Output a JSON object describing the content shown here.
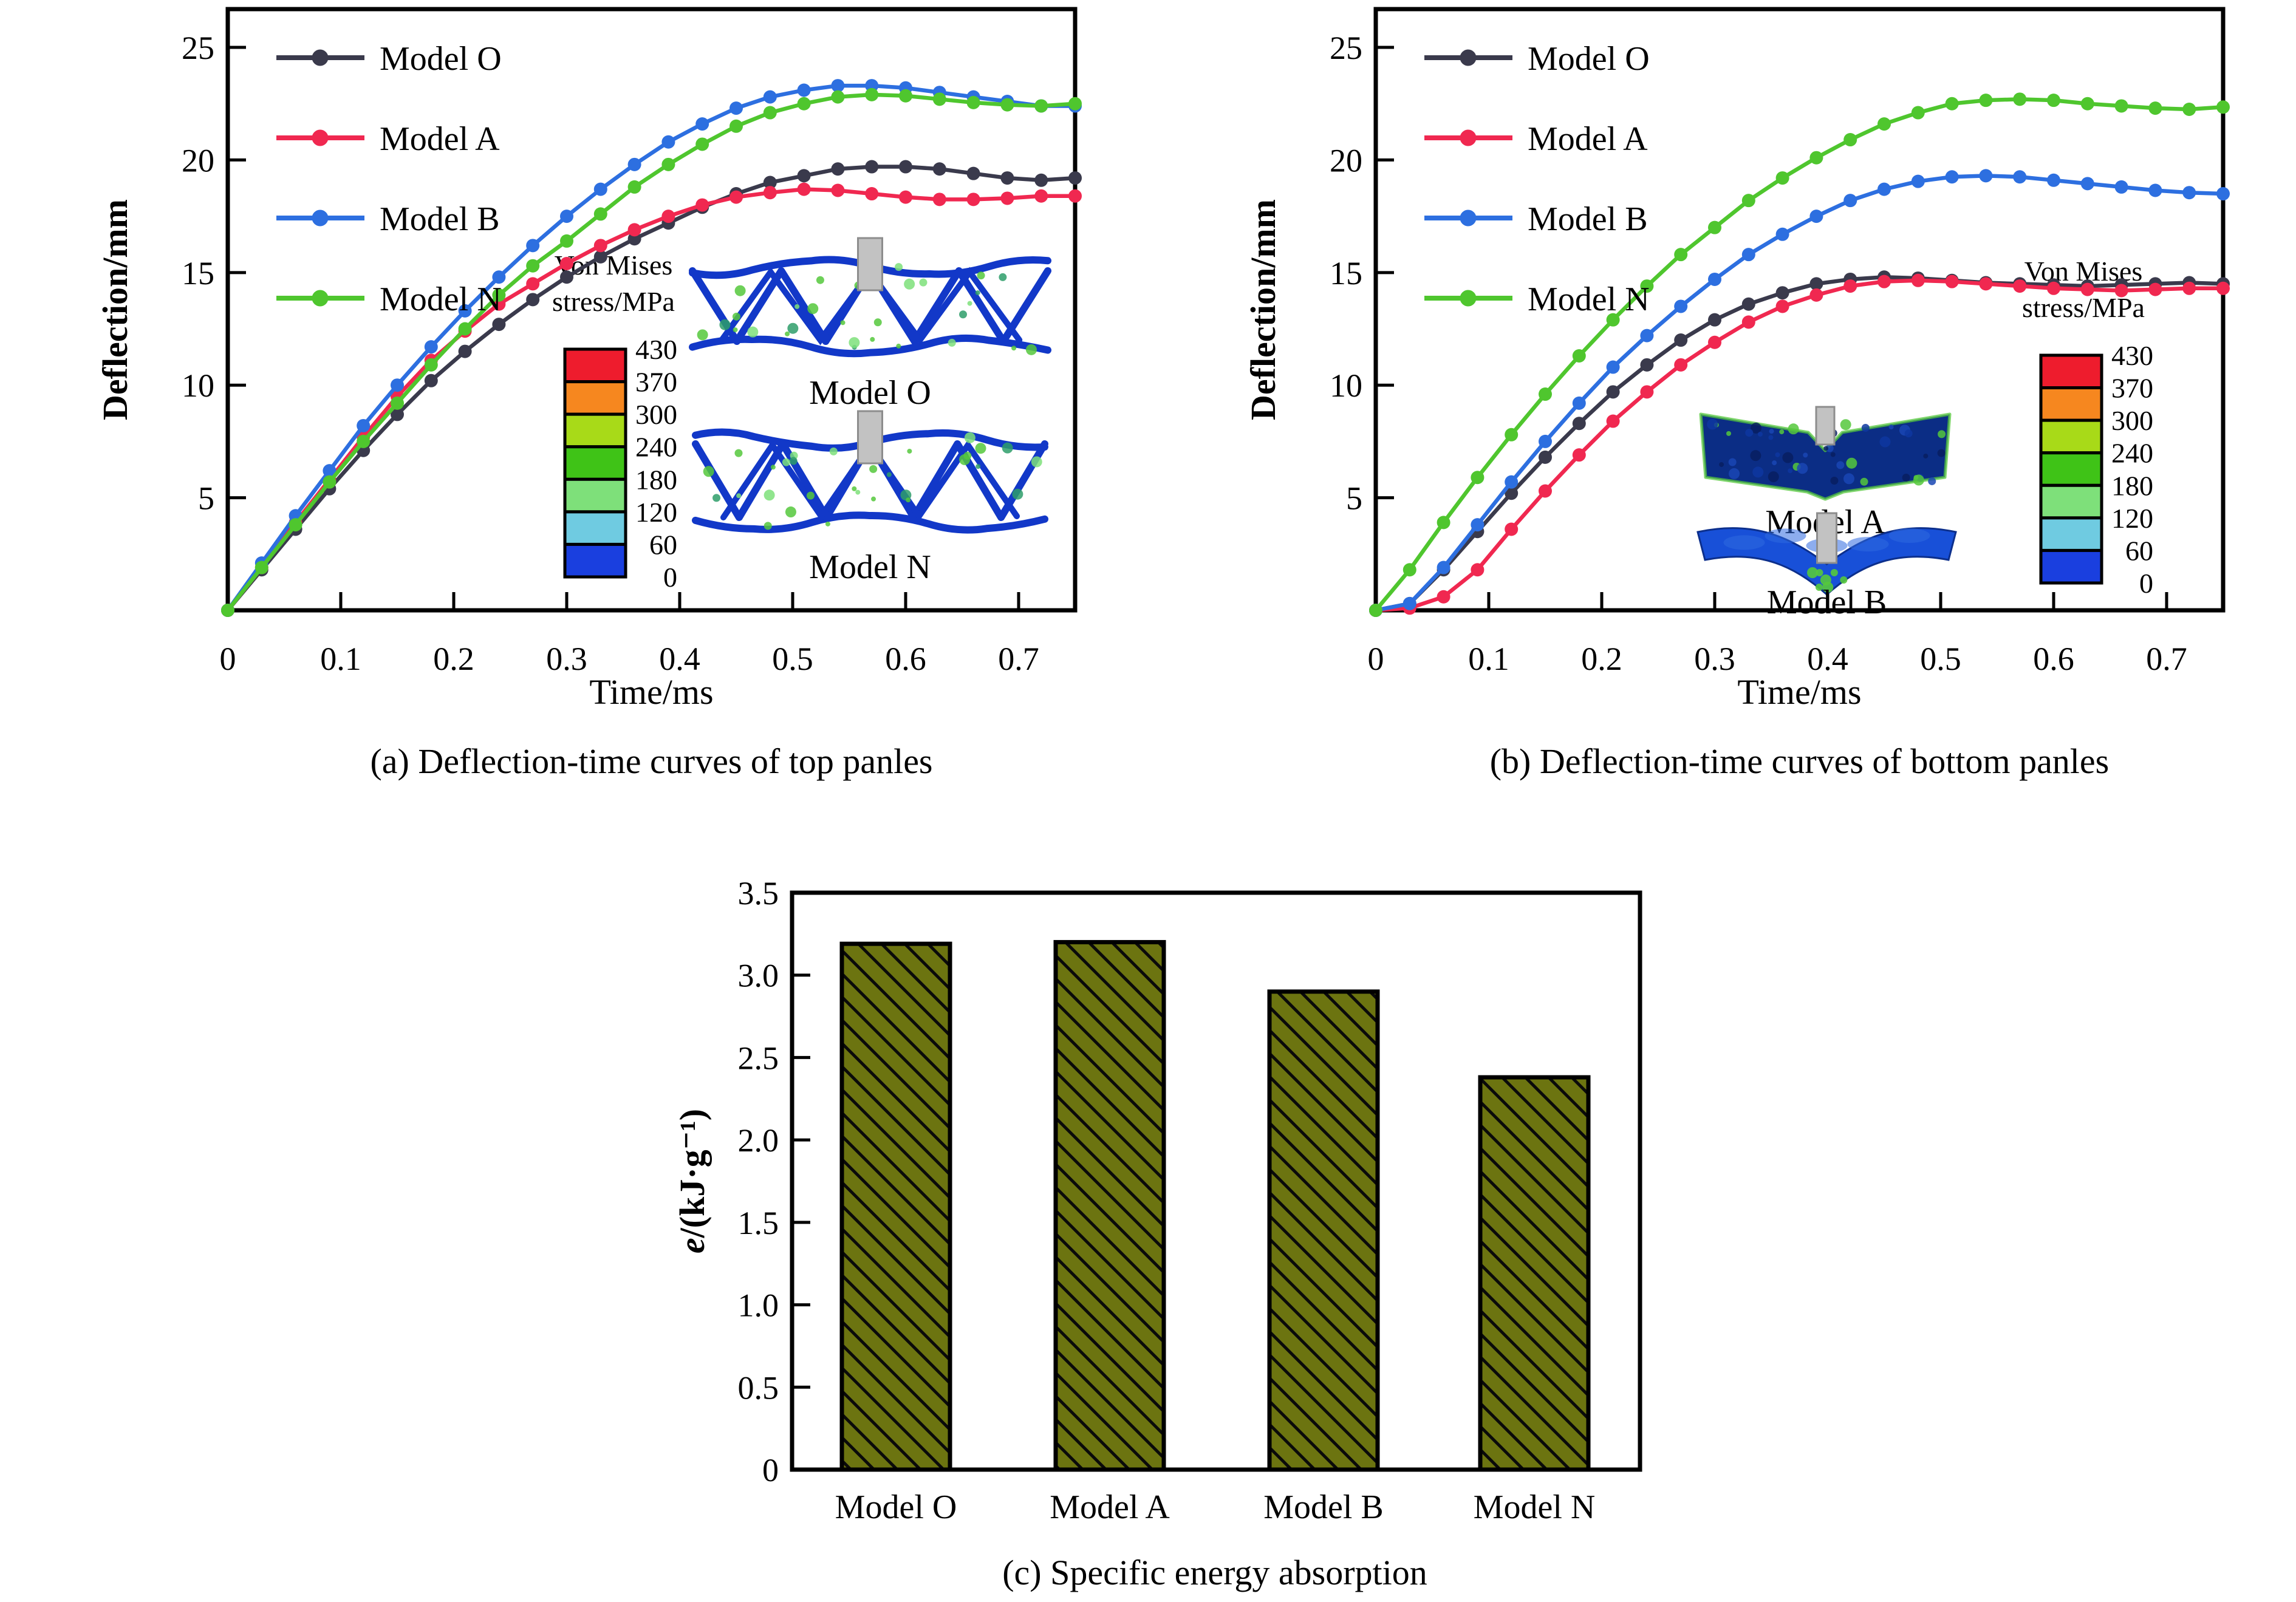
{
  "figure": {
    "background": "#ffffff"
  },
  "colorbar": {
    "title_lines": [
      "Von Mises",
      "stress/MPa"
    ],
    "tick_labels": [
      "430",
      "370",
      "300",
      "240",
      "180",
      "120",
      "60",
      "0"
    ],
    "segment_colors": [
      "#ee1c2d",
      "#f6871f",
      "#a8da18",
      "#3fc317",
      "#7ee07a",
      "#6fcbe1",
      "#1a3fdf"
    ]
  },
  "indenter_color": "#c2c2c2",
  "chart_data": [
    {
      "type": "line",
      "panel": "a",
      "caption": "(a) Deflection-time curves of top panles",
      "xlabel": "Time/ms",
      "ylabel": "Deflection/mm",
      "xlim": [
        0,
        0.75
      ],
      "ylim": [
        0,
        26.7
      ],
      "xticks": [
        0,
        0.1,
        0.2,
        0.3,
        0.4,
        0.5,
        0.6,
        0.7
      ],
      "yticks": [
        5,
        10,
        15,
        20,
        25
      ],
      "grid": false,
      "legend_position": "top-left",
      "x": [
        0,
        0.03,
        0.06,
        0.09,
        0.12,
        0.15,
        0.18,
        0.21,
        0.24,
        0.27,
        0.3,
        0.33,
        0.36,
        0.39,
        0.42,
        0.45,
        0.48,
        0.51,
        0.54,
        0.57,
        0.6,
        0.63,
        0.66,
        0.69,
        0.72,
        0.75
      ],
      "series": [
        {
          "name": "Model O",
          "color": "#3a3a4c",
          "values": [
            0,
            1.8,
            3.6,
            5.4,
            7.1,
            8.7,
            10.2,
            11.5,
            12.7,
            13.8,
            14.8,
            15.7,
            16.5,
            17.2,
            17.9,
            18.5,
            19.0,
            19.3,
            19.6,
            19.7,
            19.7,
            19.6,
            19.4,
            19.2,
            19.1,
            19.2
          ]
        },
        {
          "name": "Model A",
          "color": "#f02850",
          "values": [
            0,
            1.9,
            3.9,
            5.8,
            7.7,
            9.5,
            11.1,
            12.4,
            13.6,
            14.5,
            15.4,
            16.2,
            16.9,
            17.5,
            18.0,
            18.35,
            18.55,
            18.7,
            18.65,
            18.5,
            18.35,
            18.25,
            18.25,
            18.3,
            18.4,
            18.4
          ]
        },
        {
          "name": "Model B",
          "color": "#2d6fe0",
          "values": [
            0,
            2.1,
            4.2,
            6.2,
            8.2,
            10.0,
            11.7,
            13.3,
            14.8,
            16.2,
            17.5,
            18.7,
            19.8,
            20.8,
            21.6,
            22.3,
            22.8,
            23.1,
            23.3,
            23.3,
            23.2,
            23.0,
            22.8,
            22.6,
            22.4,
            22.4
          ]
        },
        {
          "name": "Model N",
          "color": "#4fc62e",
          "values": [
            0,
            1.9,
            3.8,
            5.7,
            7.5,
            9.2,
            10.9,
            12.5,
            14.0,
            15.3,
            16.4,
            17.6,
            18.8,
            19.8,
            20.7,
            21.5,
            22.1,
            22.5,
            22.8,
            22.9,
            22.85,
            22.7,
            22.55,
            22.45,
            22.4,
            22.5
          ]
        }
      ],
      "insets": [
        {
          "label": "Model O",
          "kind": "truss",
          "phase": 1
        },
        {
          "label": "Model N",
          "kind": "truss",
          "phase": 4
        }
      ]
    },
    {
      "type": "line",
      "panel": "b",
      "caption": "(b) Deflection-time curves of bottom panles",
      "xlabel": "Time/ms",
      "ylabel": "Deflection/mm",
      "xlim": [
        0,
        0.75
      ],
      "ylim": [
        0,
        26.7
      ],
      "xticks": [
        0,
        0.1,
        0.2,
        0.3,
        0.4,
        0.5,
        0.6,
        0.7
      ],
      "yticks": [
        5,
        10,
        15,
        20,
        25
      ],
      "grid": false,
      "legend_position": "top-left",
      "x": [
        0,
        0.03,
        0.06,
        0.09,
        0.12,
        0.15,
        0.18,
        0.21,
        0.24,
        0.27,
        0.3,
        0.33,
        0.36,
        0.39,
        0.42,
        0.45,
        0.48,
        0.51,
        0.54,
        0.57,
        0.6,
        0.63,
        0.66,
        0.69,
        0.72,
        0.75
      ],
      "series": [
        {
          "name": "Model O",
          "color": "#3a3a4c",
          "values": [
            0,
            0.3,
            1.8,
            3.5,
            5.2,
            6.8,
            8.3,
            9.7,
            10.9,
            12.0,
            12.9,
            13.6,
            14.1,
            14.5,
            14.7,
            14.8,
            14.75,
            14.65,
            14.55,
            14.5,
            14.45,
            14.4,
            14.45,
            14.5,
            14.55,
            14.5
          ]
        },
        {
          "name": "Model A",
          "color": "#f02850",
          "values": [
            0,
            0.1,
            0.6,
            1.8,
            3.6,
            5.3,
            6.9,
            8.4,
            9.7,
            10.9,
            11.9,
            12.8,
            13.5,
            14.0,
            14.4,
            14.6,
            14.65,
            14.6,
            14.5,
            14.4,
            14.3,
            14.25,
            14.2,
            14.25,
            14.3,
            14.3
          ]
        },
        {
          "name": "Model B",
          "color": "#2d6fe0",
          "values": [
            0,
            0.3,
            1.9,
            3.8,
            5.7,
            7.5,
            9.2,
            10.8,
            12.2,
            13.5,
            14.7,
            15.8,
            16.7,
            17.5,
            18.2,
            18.7,
            19.05,
            19.25,
            19.3,
            19.25,
            19.1,
            18.95,
            18.8,
            18.65,
            18.55,
            18.5
          ]
        },
        {
          "name": "Model N",
          "color": "#4fc62e",
          "values": [
            0,
            1.8,
            3.9,
            5.9,
            7.8,
            9.6,
            11.3,
            12.9,
            14.4,
            15.8,
            17.0,
            18.2,
            19.2,
            20.1,
            20.9,
            21.6,
            22.1,
            22.5,
            22.65,
            22.7,
            22.65,
            22.5,
            22.4,
            22.3,
            22.25,
            22.35
          ]
        }
      ],
      "insets": [
        {
          "label": "Model A",
          "kind": "foam",
          "phase": 2
        },
        {
          "label": "Model B",
          "kind": "chevron",
          "phase": 3
        }
      ]
    },
    {
      "type": "bar",
      "panel": "c",
      "caption": "(c) Specific energy absorption",
      "ylabel": "e/(kJ·g⁻¹)",
      "ylabel_italic": "e",
      "ylabel_rest": "/(kJ·g⁻¹)",
      "xlabel": "",
      "categories": [
        "Model O",
        "Model A",
        "Model B",
        "Model N"
      ],
      "values": [
        3.19,
        3.2,
        2.9,
        2.38
      ],
      "ylim": [
        0,
        3.5
      ],
      "yticks": [
        0,
        0.5,
        1.0,
        1.5,
        2.0,
        2.5,
        3.0,
        3.5
      ],
      "grid": false,
      "bar_color": "#6c7410",
      "bar_edge_color": "#000000",
      "hatch": "diagonal"
    }
  ]
}
